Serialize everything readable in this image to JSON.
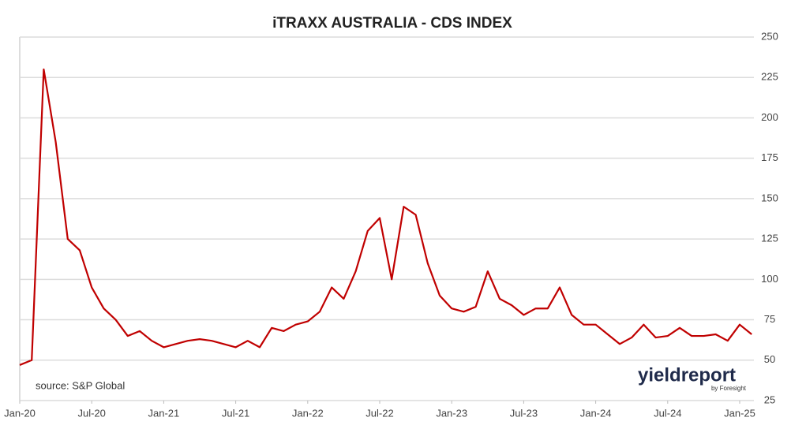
{
  "chart_data": {
    "type": "line",
    "title": "iTRAXX AUSTRALIA - CDS INDEX",
    "source": "source: S&P Global",
    "logo": {
      "brand": "yieldreport",
      "by": "by Foresight"
    },
    "x": [
      "2020-01",
      "2020-02",
      "2020-03",
      "2020-04",
      "2020-05",
      "2020-06",
      "2020-07",
      "2020-08",
      "2020-09",
      "2020-10",
      "2020-11",
      "2020-12",
      "2021-01",
      "2021-02",
      "2021-03",
      "2021-04",
      "2021-05",
      "2021-06",
      "2021-07",
      "2021-08",
      "2021-09",
      "2021-10",
      "2021-11",
      "2021-12",
      "2022-01",
      "2022-02",
      "2022-03",
      "2022-04",
      "2022-05",
      "2022-06",
      "2022-07",
      "2022-08",
      "2022-09",
      "2022-10",
      "2022-11",
      "2022-12",
      "2023-01",
      "2023-02",
      "2023-03",
      "2023-04",
      "2023-05",
      "2023-06",
      "2023-07",
      "2023-08",
      "2023-09",
      "2023-10",
      "2023-11",
      "2023-12",
      "2024-01",
      "2024-02",
      "2024-03",
      "2024-04",
      "2024-05",
      "2024-06",
      "2024-07",
      "2024-08",
      "2024-09",
      "2024-10",
      "2024-11",
      "2024-12",
      "2025-01",
      "2025-02"
    ],
    "series": [
      {
        "name": "iTraxx Australia",
        "color": "#c00000",
        "values": [
          47,
          50,
          230,
          185,
          125,
          118,
          95,
          82,
          75,
          65,
          68,
          62,
          58,
          60,
          62,
          63,
          62,
          60,
          58,
          62,
          58,
          70,
          68,
          72,
          74,
          80,
          95,
          88,
          105,
          130,
          138,
          100,
          145,
          140,
          110,
          90,
          82,
          80,
          83,
          105,
          88,
          84,
          78,
          82,
          82,
          95,
          78,
          72,
          72,
          66,
          60,
          64,
          72,
          64,
          65,
          70,
          65,
          65,
          66,
          62,
          72,
          66
        ]
      }
    ],
    "ylim": [
      25,
      250
    ],
    "yticks": [
      25,
      50,
      75,
      100,
      125,
      150,
      175,
      200,
      225,
      250
    ],
    "xticks": [
      {
        "value": "2020-01",
        "label": "Jan-20"
      },
      {
        "value": "2020-07",
        "label": "Jul-20"
      },
      {
        "value": "2021-01",
        "label": "Jan-21"
      },
      {
        "value": "2021-07",
        "label": "Jul-21"
      },
      {
        "value": "2022-01",
        "label": "Jan-22"
      },
      {
        "value": "2022-07",
        "label": "Jul-22"
      },
      {
        "value": "2023-01",
        "label": "Jan-23"
      },
      {
        "value": "2023-07",
        "label": "Jul-23"
      },
      {
        "value": "2024-01",
        "label": "Jan-24"
      },
      {
        "value": "2024-07",
        "label": "Jul-24"
      },
      {
        "value": "2025-01",
        "label": "Jan-25"
      }
    ],
    "grid": true
  }
}
